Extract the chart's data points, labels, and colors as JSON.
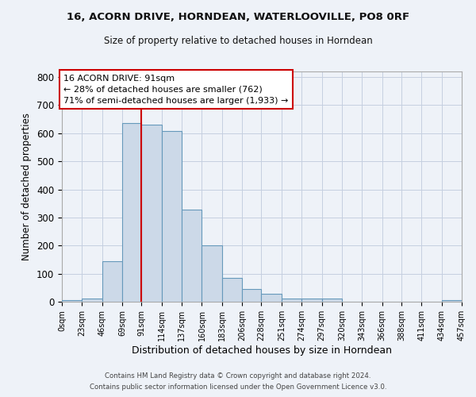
{
  "title_line1": "16, ACORN DRIVE, HORNDEAN, WATERLOOVILLE, PO8 0RF",
  "title_line2": "Size of property relative to detached houses in Horndean",
  "xlabel": "Distribution of detached houses by size in Horndean",
  "ylabel": "Number of detached properties",
  "footer_line1": "Contains HM Land Registry data © Crown copyright and database right 2024.",
  "footer_line2": "Contains public sector information licensed under the Open Government Licence v3.0.",
  "annotation_line1": "16 ACORN DRIVE: 91sqm",
  "annotation_line2": "← 28% of detached houses are smaller (762)",
  "annotation_line3": "71% of semi-detached houses are larger (1,933) →",
  "bar_color": "#ccd9e8",
  "bar_edge_color": "#6699bb",
  "ref_line_color": "#cc0000",
  "ref_line_x": 91,
  "bin_edges": [
    0,
    23,
    46,
    69,
    91,
    114,
    137,
    160,
    183,
    206,
    228,
    251,
    274,
    297,
    320,
    343,
    366,
    388,
    411,
    434,
    457
  ],
  "bar_heights": [
    5,
    10,
    145,
    635,
    630,
    608,
    328,
    200,
    85,
    45,
    28,
    10,
    10,
    10,
    0,
    0,
    0,
    0,
    0,
    5
  ],
  "ylim": [
    0,
    820
  ],
  "yticks": [
    0,
    100,
    200,
    300,
    400,
    500,
    600,
    700,
    800
  ],
  "grid_color": "#c5cfe0",
  "background_color": "#eef2f8",
  "plot_bg_color": "#eef2f8"
}
